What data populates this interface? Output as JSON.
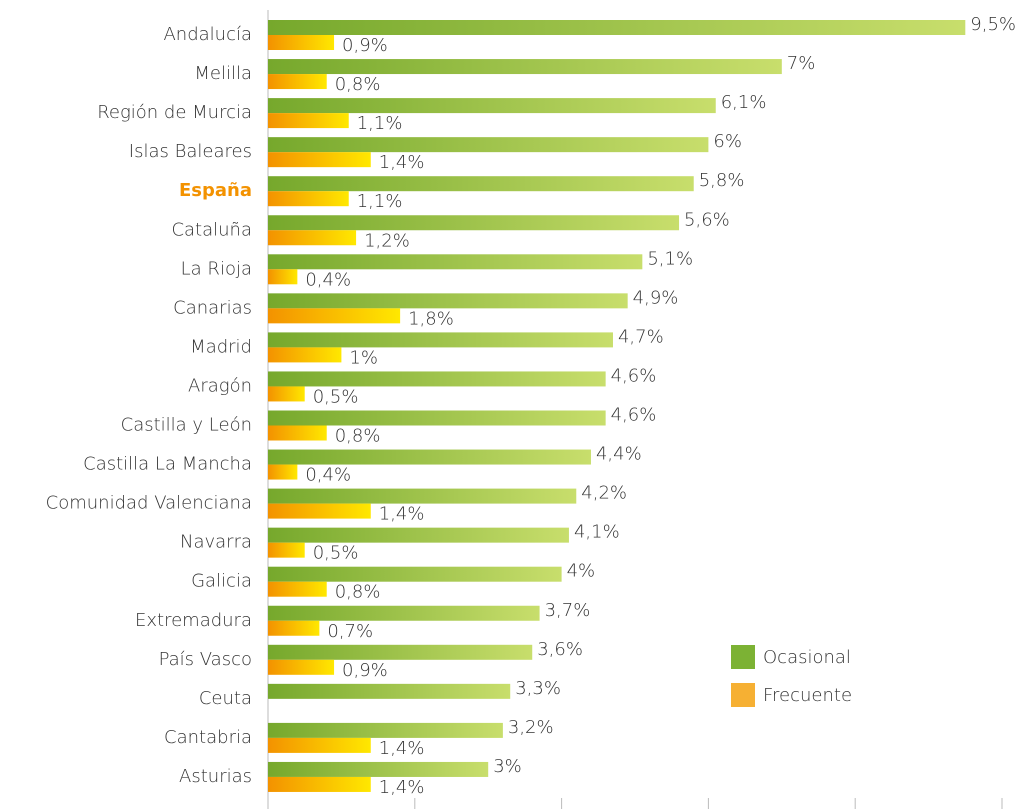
{
  "chart_data": {
    "type": "hbar",
    "categories": [
      "Andalucía",
      "Melilla",
      "Región de Murcia",
      "Islas Baleares",
      "España",
      "Cataluña",
      "La Rioja",
      "Canarias",
      "Madrid",
      "Aragón",
      "Castilla y León",
      "Castilla La Mancha",
      "Comunidad Valenciana",
      "Navarra",
      "Galicia",
      "Extremadura",
      "País Vasco",
      "Ceuta",
      "Cantabria",
      "Asturias"
    ],
    "highlight": 4,
    "highlight_color": "#f39200",
    "series": [
      {
        "name": "Ocasional",
        "color": "#7cb234",
        "gradient": [
          "#76a82c",
          "#c8de6c"
        ],
        "values": [
          9.5,
          7,
          6.1,
          6,
          5.8,
          5.6,
          5.1,
          4.9,
          4.7,
          4.6,
          4.6,
          4.4,
          4.2,
          4.1,
          4,
          3.7,
          3.6,
          3.3,
          3.2,
          3
        ],
        "value_labels": [
          "9,5%",
          "7%",
          "6,1%",
          "6%",
          "5,8%",
          "5,6%",
          "5,1%",
          "4,9%",
          "4,7%",
          "4,6%",
          "4,6%",
          "4,4%",
          "4,2%",
          "4,1%",
          "4%",
          "3,7%",
          "3,6%",
          "3,3%",
          "3,2%",
          "3%"
        ]
      },
      {
        "name": "Frecuente",
        "color": "#f6b033",
        "gradient": [
          "#f39200",
          "#ffe800"
        ],
        "values": [
          0.9,
          0.8,
          1.1,
          1.4,
          1.1,
          1.2,
          0.4,
          1.8,
          1,
          0.5,
          0.8,
          0.4,
          1.4,
          0.5,
          0.8,
          0.7,
          0.9,
          null,
          1.4,
          1.4
        ],
        "value_labels": [
          "0,9%",
          "0,8%",
          "1,1%",
          "1,4%",
          "1,1%",
          "1,2%",
          "0,4%",
          "1,8%",
          "1%",
          "0,5%",
          "0,8%",
          "0,4%",
          "1,4%",
          "0,5%",
          "0,8%",
          "0,7%",
          "0,9%",
          null,
          "1,4%",
          "1,4%"
        ]
      }
    ],
    "xlim": [
      0,
      10
    ],
    "xticks": [
      0,
      2,
      4,
      6,
      8,
      10
    ],
    "legend": "lower right"
  }
}
